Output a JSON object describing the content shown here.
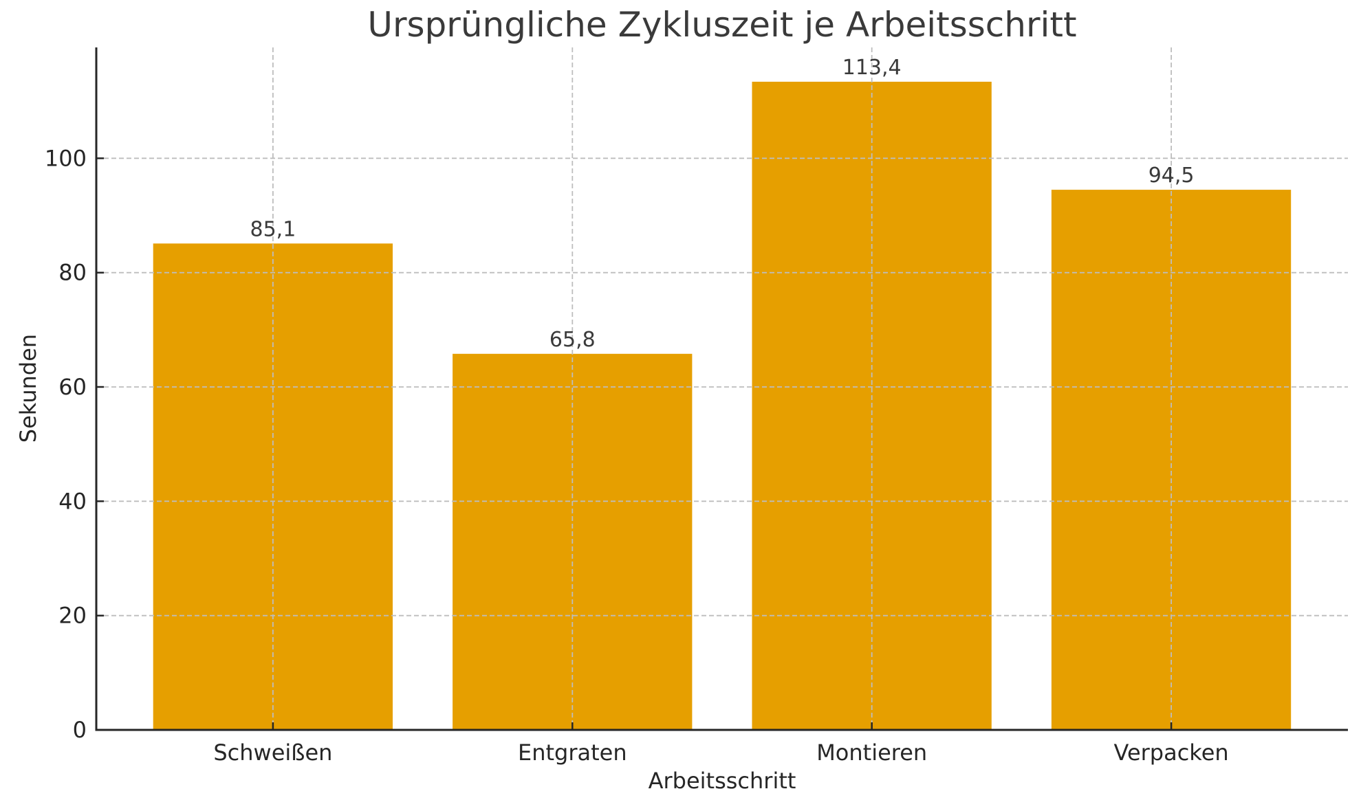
{
  "chart_data": {
    "type": "bar",
    "title": "Ursprüngliche Zykluszeit je Arbeitsschritt",
    "xlabel": "Arbeitsschritt",
    "ylabel": "Sekunden",
    "categories": [
      "Schweißen",
      "Entgraten",
      "Montieren",
      "Verpacken"
    ],
    "values": [
      85.1,
      65.8,
      113.4,
      94.5
    ],
    "value_labels": [
      "85,1",
      "65,8",
      "113,4",
      "94,5"
    ],
    "yticks": [
      0,
      20,
      40,
      60,
      80,
      100
    ],
    "ylim": [
      0,
      119.4
    ],
    "grid": "dashed, horizontal and vertical, drawn above bars",
    "legend": "none",
    "colors": {
      "bar": "#E69F00",
      "grid": "#BDBDBD",
      "spine": "#262626",
      "tick_text": "#262626",
      "title_text": "#3A3A3A",
      "value_text": "#3A3A3A",
      "background": "#FFFFFF"
    }
  }
}
